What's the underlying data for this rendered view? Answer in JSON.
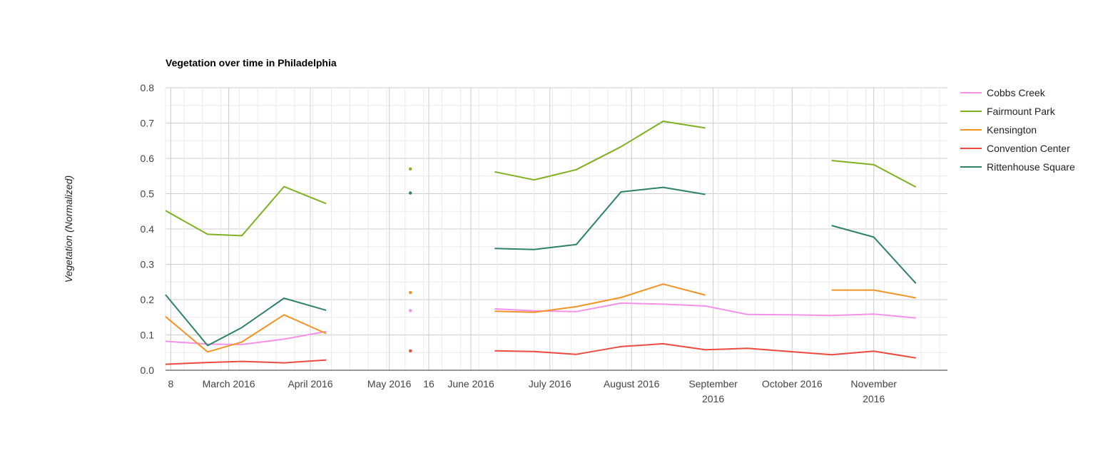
{
  "chart_data": {
    "type": "line",
    "title": "Vegetation over time in Philadelphia",
    "xlabel": "",
    "ylabel": "Vegetation (Normalized)",
    "ylim": [
      0,
      0.8
    ],
    "y_ticks": [
      "0.0",
      "0.1",
      "0.2",
      "0.3",
      "0.4",
      "0.5",
      "0.6",
      "0.7",
      "0.8"
    ],
    "x_range": [
      "2016-02-06",
      "2016-11-29"
    ],
    "x_ticks": [
      {
        "date": "2016-02-08",
        "label": "8"
      },
      {
        "date": "2016-03-01",
        "label": "March 2016"
      },
      {
        "date": "2016-04-01",
        "label": "April 2016"
      },
      {
        "date": "2016-05-01",
        "label": "May 2016"
      },
      {
        "date": "2016-05-16",
        "label": "16"
      },
      {
        "date": "2016-06-01",
        "label": "June 2016"
      },
      {
        "date": "2016-07-01",
        "label": "July 2016"
      },
      {
        "date": "2016-08-01",
        "label": "August 2016"
      },
      {
        "date": "2016-09-01",
        "label": "September 2016"
      },
      {
        "date": "2016-10-01",
        "label": "October 2016"
      },
      {
        "date": "2016-11-01",
        "label": "November 2016"
      }
    ],
    "legend_position": "right",
    "grid": true,
    "series": [
      {
        "name": "Cobbs Creek",
        "color": "#f591ea",
        "points": [
          [
            "2016-02-06",
            0.082
          ],
          [
            "2016-02-22",
            0.074
          ],
          [
            "2016-03-06",
            0.073
          ],
          [
            "2016-03-22",
            0.088
          ],
          [
            "2016-04-07",
            0.11
          ],
          [
            "2016-05-09",
            0.169
          ],
          [
            "2016-06-10",
            0.174
          ],
          [
            "2016-06-25",
            0.168
          ],
          [
            "2016-07-11",
            0.166
          ],
          [
            "2016-07-28",
            0.19
          ],
          [
            "2016-08-13",
            0.187
          ],
          [
            "2016-08-29",
            0.182
          ],
          [
            "2016-09-14",
            0.158
          ],
          [
            "2016-09-30",
            0.157
          ],
          [
            "2016-10-16",
            0.155
          ],
          [
            "2016-11-01",
            0.159
          ],
          [
            "2016-11-17",
            0.148
          ]
        ]
      },
      {
        "name": "Fairmount Park",
        "color": "#7fb121",
        "points": [
          [
            "2016-02-06",
            0.452
          ],
          [
            "2016-02-22",
            0.385
          ],
          [
            "2016-03-06",
            0.381
          ],
          [
            "2016-03-22",
            0.52
          ],
          [
            "2016-04-07",
            0.472
          ],
          [
            "2016-05-09",
            0.57
          ],
          [
            "2016-06-10",
            0.562
          ],
          [
            "2016-06-25",
            0.539
          ],
          [
            "2016-07-11",
            0.568
          ],
          [
            "2016-07-28",
            0.633
          ],
          [
            "2016-08-13",
            0.705
          ],
          [
            "2016-08-29",
            0.686
          ],
          [
            "2016-10-16",
            0.594
          ],
          [
            "2016-11-01",
            0.582
          ],
          [
            "2016-11-17",
            0.519
          ]
        ]
      },
      {
        "name": "Kensington",
        "color": "#f39325",
        "points": [
          [
            "2016-02-06",
            0.152
          ],
          [
            "2016-02-22",
            0.052
          ],
          [
            "2016-03-06",
            0.08
          ],
          [
            "2016-03-22",
            0.157
          ],
          [
            "2016-04-07",
            0.104
          ],
          [
            "2016-05-09",
            0.22
          ],
          [
            "2016-06-10",
            0.167
          ],
          [
            "2016-06-25",
            0.164
          ],
          [
            "2016-07-11",
            0.18
          ],
          [
            "2016-07-28",
            0.206
          ],
          [
            "2016-08-13",
            0.244
          ],
          [
            "2016-08-29",
            0.213
          ],
          [
            "2016-10-16",
            0.227
          ],
          [
            "2016-11-01",
            0.227
          ],
          [
            "2016-11-17",
            0.205
          ]
        ]
      },
      {
        "name": "Convention Center",
        "color": "#ee4b3f",
        "points": [
          [
            "2016-02-06",
            0.017
          ],
          [
            "2016-02-22",
            0.022
          ],
          [
            "2016-03-06",
            0.025
          ],
          [
            "2016-03-22",
            0.021
          ],
          [
            "2016-04-07",
            0.029
          ],
          [
            "2016-05-09",
            0.055
          ],
          [
            "2016-06-10",
            0.055
          ],
          [
            "2016-06-25",
            0.053
          ],
          [
            "2016-07-11",
            0.045
          ],
          [
            "2016-07-28",
            0.067
          ],
          [
            "2016-08-13",
            0.075
          ],
          [
            "2016-08-29",
            0.058
          ],
          [
            "2016-09-14",
            0.062
          ],
          [
            "2016-09-30",
            0.053
          ],
          [
            "2016-10-16",
            0.044
          ],
          [
            "2016-11-01",
            0.054
          ],
          [
            "2016-11-17",
            0.035
          ]
        ]
      },
      {
        "name": "Rittenhouse Square",
        "color": "#2e8363",
        "points": [
          [
            "2016-02-06",
            0.214
          ],
          [
            "2016-02-22",
            0.07
          ],
          [
            "2016-03-06",
            0.121
          ],
          [
            "2016-03-22",
            0.204
          ],
          [
            "2016-04-07",
            0.17
          ],
          [
            "2016-05-09",
            0.502
          ],
          [
            "2016-06-10",
            0.345
          ],
          [
            "2016-06-25",
            0.342
          ],
          [
            "2016-07-11",
            0.356
          ],
          [
            "2016-07-28",
            0.505
          ],
          [
            "2016-08-13",
            0.518
          ],
          [
            "2016-08-29",
            0.498
          ],
          [
            "2016-10-16",
            0.41
          ],
          [
            "2016-11-01",
            0.377
          ],
          [
            "2016-11-17",
            0.246
          ]
        ]
      }
    ]
  }
}
